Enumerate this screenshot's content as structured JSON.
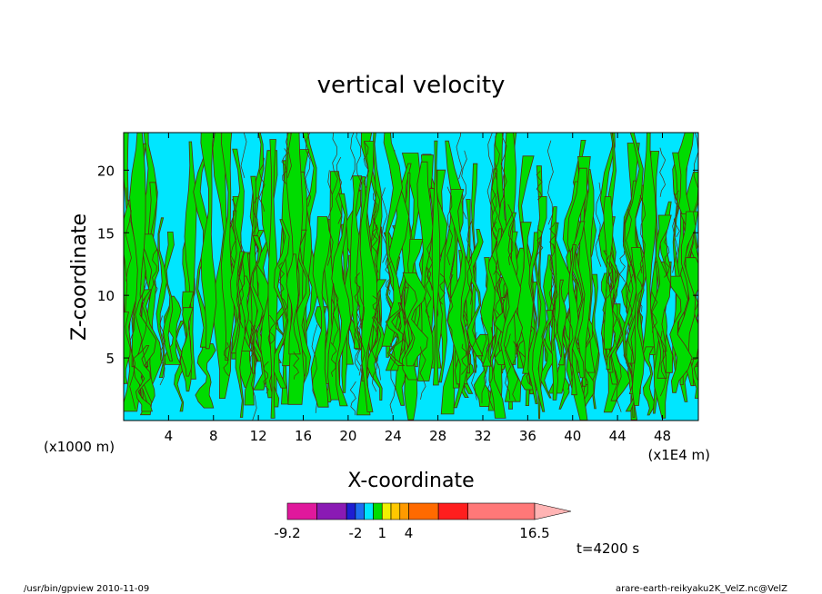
{
  "chart_data": {
    "type": "heatmap",
    "title": "vertical velocity",
    "xlabel": "X-coordinate",
    "ylabel": "Z-coordinate",
    "x_unit_left": "(x1000 m)",
    "x_unit_right": "(x1E4 m)",
    "xlim": [
      0,
      51.2
    ],
    "ylim": [
      0,
      23
    ],
    "xticks": [
      4,
      8,
      12,
      16,
      20,
      24,
      28,
      32,
      36,
      40,
      44,
      48
    ],
    "yticks": [
      5,
      10,
      15,
      20
    ],
    "time_label": "t=4200 s",
    "fill_colors": {
      "negative": "#00e6ff",
      "positive": "#00dc00",
      "contour_line": "#5a2a10"
    },
    "colorbar": {
      "labels": [
        "-9.2",
        "-2",
        "1",
        "4",
        "16.5"
      ],
      "segments": [
        {
          "color": "#e0189c",
          "weight": 2
        },
        {
          "color": "#8a1ab4",
          "weight": 2
        },
        {
          "color": "#1e1ed2",
          "weight": 0.6
        },
        {
          "color": "#1e6ef0",
          "weight": 0.6
        },
        {
          "color": "#00e6ff",
          "weight": 0.6
        },
        {
          "color": "#00dc00",
          "weight": 0.6
        },
        {
          "color": "#f0f000",
          "weight": 0.6
        },
        {
          "color": "#ffc800",
          "weight": 0.6
        },
        {
          "color": "#ff9a00",
          "weight": 0.6
        },
        {
          "color": "#ff6a00",
          "weight": 2
        },
        {
          "color": "#ff1e1e",
          "weight": 2
        },
        {
          "color": "#ff7878",
          "weight": 4.5
        }
      ],
      "extend_color": "#ffb4b4"
    }
  },
  "footer": {
    "left": "/usr/bin/gpview  2010-11-09",
    "right": "arare-earth-reikyaku2K_VelZ.nc@VelZ"
  }
}
